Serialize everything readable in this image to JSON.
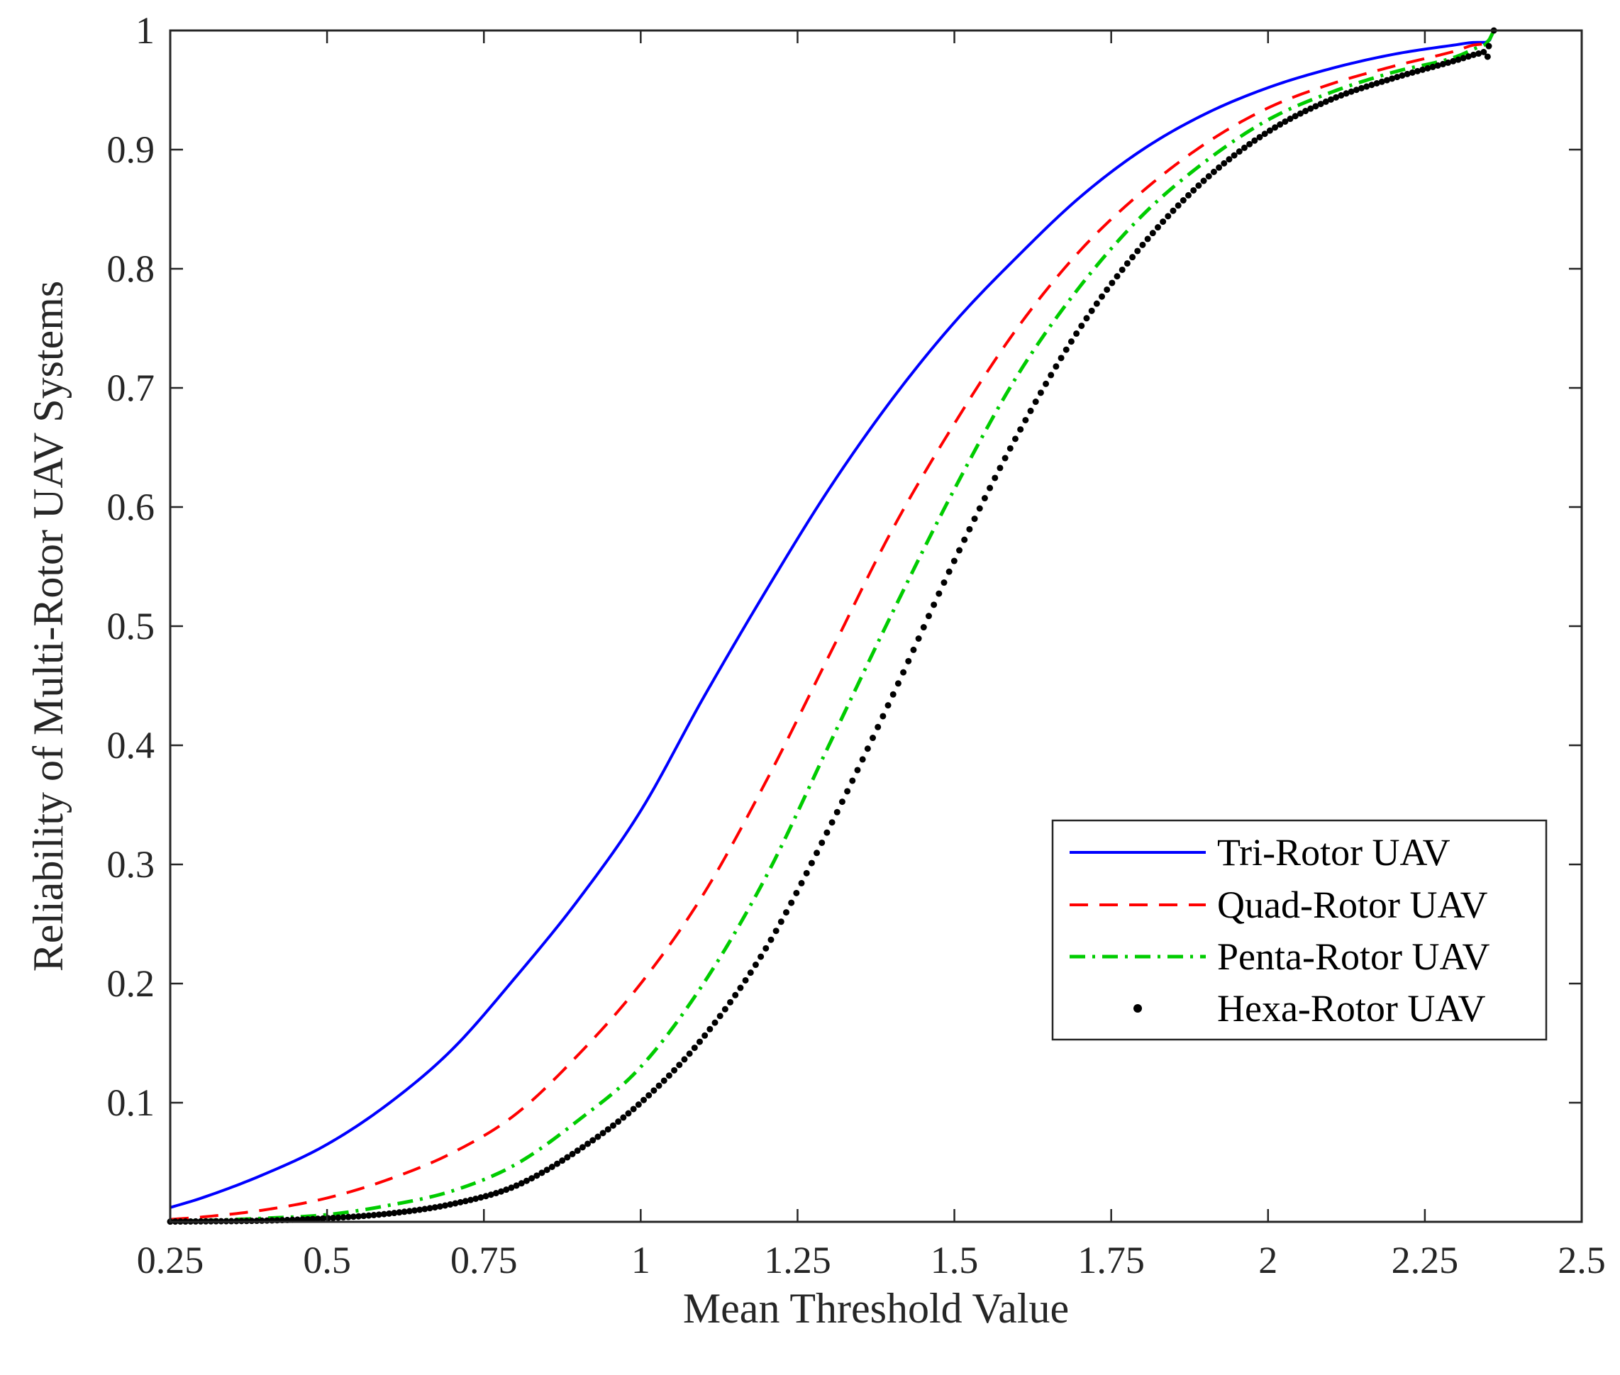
{
  "chart_data": {
    "type": "line",
    "title": "",
    "xlabel": "Mean Threshold Value",
    "ylabel": "Reliability of Multi-Rotor UAV Systems",
    "xlim": [
      0.25,
      2.5
    ],
    "ylim": [
      0,
      1
    ],
    "grid": false,
    "legend_position": "right-middle",
    "x_ticks": [
      0.25,
      0.5,
      0.75,
      1,
      1.25,
      1.5,
      1.75,
      2,
      2.25,
      2.5
    ],
    "x_tick_labels": [
      "0.25",
      "0.5",
      "0.75",
      "1",
      "1.25",
      "1.5",
      "1.75",
      "2",
      "2.25",
      "2.5"
    ],
    "y_ticks": [
      0.1,
      0.2,
      0.3,
      0.4,
      0.5,
      0.6,
      0.7,
      0.8,
      0.9,
      1
    ],
    "y_tick_labels": [
      "0.1",
      "0.2",
      "0.3",
      "0.4",
      "0.5",
      "0.6",
      "0.7",
      "0.8",
      "0.9",
      "1"
    ],
    "x": [
      0.25,
      0.3,
      0.4,
      0.5,
      0.6,
      0.7,
      0.8,
      0.9,
      1.0,
      1.1,
      1.2,
      1.3,
      1.4,
      1.5,
      1.6,
      1.7,
      1.8,
      1.9,
      2.0,
      2.1,
      2.2,
      2.3,
      2.33,
      2.35,
      2.36
    ],
    "series": [
      {
        "name": "Tri-Rotor UAV",
        "color": "#0000ff",
        "style": "solid",
        "values": [
          0.012,
          0.02,
          0.04,
          0.065,
          0.1,
          0.145,
          0.205,
          0.27,
          0.345,
          0.44,
          0.53,
          0.615,
          0.69,
          0.755,
          0.81,
          0.86,
          0.9,
          0.93,
          0.952,
          0.968,
          0.98,
          0.988,
          0.99,
          0.99,
          1.0
        ]
      },
      {
        "name": "Quad-Rotor UAV",
        "color": "#ff0000",
        "style": "dashed",
        "values": [
          0.002,
          0.004,
          0.01,
          0.02,
          0.036,
          0.058,
          0.09,
          0.14,
          0.2,
          0.275,
          0.37,
          0.475,
          0.58,
          0.67,
          0.75,
          0.815,
          0.865,
          0.905,
          0.935,
          0.955,
          0.97,
          0.983,
          0.988,
          0.99,
          1.0
        ]
      },
      {
        "name": "Penta-Rotor UAV",
        "color": "#00cc00",
        "style": "dash-dot",
        "values": [
          0.0005,
          0.001,
          0.003,
          0.006,
          0.014,
          0.026,
          0.048,
          0.085,
          0.13,
          0.2,
          0.29,
          0.4,
          0.51,
          0.615,
          0.71,
          0.785,
          0.845,
          0.89,
          0.925,
          0.948,
          0.965,
          0.978,
          0.985,
          0.99,
          1.0
        ]
      },
      {
        "name": "Hexa-Rotor UAV",
        "color": "#000000",
        "style": "dots",
        "values": [
          0.0002,
          0.0004,
          0.001,
          0.003,
          0.007,
          0.015,
          0.03,
          0.06,
          0.1,
          0.155,
          0.23,
          0.33,
          0.44,
          0.555,
          0.66,
          0.75,
          0.82,
          0.875,
          0.915,
          0.942,
          0.96,
          0.975,
          0.98,
          0.985,
          1.0
        ]
      }
    ]
  }
}
